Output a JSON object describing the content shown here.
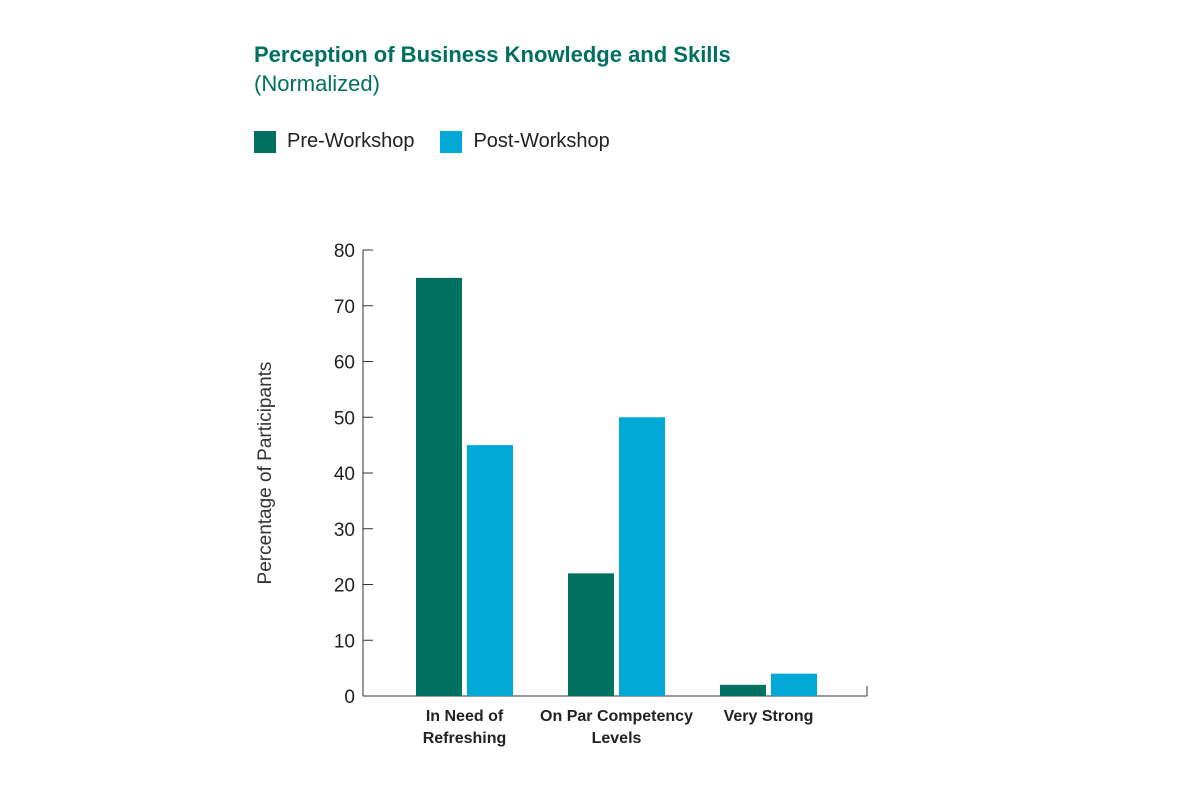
{
  "chart_data": {
    "type": "bar",
    "title": "Perception of Business Knowledge and Skills",
    "subtitle": "(Normalized)",
    "ylabel": "Percentage of Participants",
    "xlabel": "",
    "ylim": [
      0,
      80
    ],
    "yticks": [
      0,
      10,
      20,
      30,
      40,
      50,
      60,
      70,
      80
    ],
    "categories": [
      "In Need of Refreshing",
      "On Par Competency Levels",
      "Very Strong"
    ],
    "category_lines": [
      [
        "In Need of",
        "Refreshing"
      ],
      [
        "On Par Competency",
        "Levels"
      ],
      [
        "Very Strong"
      ]
    ],
    "series": [
      {
        "name": "Pre-Workshop",
        "color": "#007060",
        "values": [
          75,
          22,
          2
        ]
      },
      {
        "name": "Post-Workshop",
        "color": "#00a8d6",
        "values": [
          45,
          50,
          4
        ]
      }
    ],
    "legend_position": "top-left",
    "grid": false
  }
}
